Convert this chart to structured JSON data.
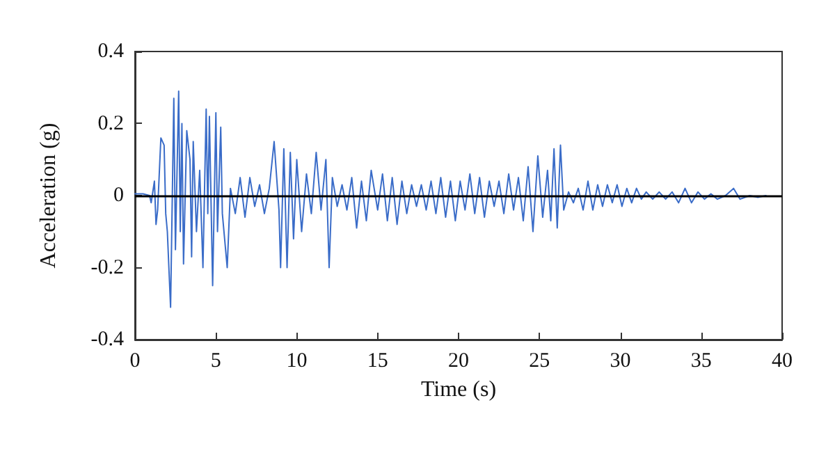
{
  "chart_data": {
    "type": "line",
    "xlabel": "Time (s)",
    "ylabel": "Acceleration (g)",
    "xlim": [
      0,
      40
    ],
    "xticks": [
      0,
      5,
      10,
      15,
      20,
      25,
      30,
      35,
      40
    ],
    "ylim": [
      -0.4,
      0.4
    ],
    "yticks": [
      -0.4,
      -0.2,
      0,
      0.2,
      0.4
    ],
    "grid": false,
    "marker": "none",
    "line_style": "solid",
    "ref_lines": [
      {
        "axis": "y",
        "value": 0,
        "color": "#000000"
      }
    ],
    "series": [
      {
        "color": "#3a6cc8",
        "x": [
          0,
          0.5,
          0.9,
          1.0,
          1.2,
          1.3,
          1.4,
          1.6,
          1.8,
          1.9,
          2.0,
          2.2,
          2.4,
          2.5,
          2.7,
          2.8,
          2.9,
          3.0,
          3.2,
          3.4,
          3.5,
          3.6,
          3.8,
          4.0,
          4.2,
          4.4,
          4.5,
          4.6,
          4.8,
          5.0,
          5.1,
          5.3,
          5.4,
          5.7,
          5.9,
          6.2,
          6.5,
          6.8,
          7.1,
          7.4,
          7.7,
          8.0,
          8.3,
          8.6,
          8.9,
          9.0,
          9.2,
          9.4,
          9.6,
          9.8,
          10.0,
          10.3,
          10.6,
          10.9,
          11.2,
          11.5,
          11.8,
          12.0,
          12.2,
          12.5,
          12.8,
          13.1,
          13.4,
          13.7,
          14.0,
          14.3,
          14.6,
          15.0,
          15.3,
          15.6,
          15.9,
          16.2,
          16.5,
          16.8,
          17.1,
          17.4,
          17.7,
          18.0,
          18.3,
          18.6,
          18.9,
          19.2,
          19.5,
          19.8,
          20.1,
          20.4,
          20.7,
          21.0,
          21.3,
          21.6,
          21.9,
          22.2,
          22.5,
          22.8,
          23.1,
          23.4,
          23.7,
          24.0,
          24.3,
          24.6,
          24.9,
          25.2,
          25.5,
          25.7,
          25.9,
          26.1,
          26.3,
          26.5,
          26.8,
          27.1,
          27.4,
          27.7,
          28.0,
          28.3,
          28.6,
          28.9,
          29.2,
          29.5,
          29.8,
          30.1,
          30.4,
          30.7,
          31.0,
          31.3,
          31.6,
          32.0,
          32.4,
          32.8,
          33.2,
          33.6,
          34.0,
          34.4,
          34.8,
          35.2,
          35.6,
          36.0,
          36.5,
          37.0,
          37.4,
          38.0,
          38.5,
          39.0
        ],
        "values": [
          0.005,
          0.005,
          0.0,
          -0.02,
          0.04,
          -0.08,
          -0.04,
          0.16,
          0.14,
          -0.05,
          -0.1,
          -0.31,
          0.27,
          -0.15,
          0.29,
          -0.1,
          0.2,
          -0.19,
          0.18,
          0.1,
          -0.17,
          0.15,
          -0.1,
          0.07,
          -0.2,
          0.24,
          -0.05,
          0.22,
          -0.25,
          0.23,
          -0.1,
          0.19,
          -0.05,
          -0.2,
          0.02,
          -0.05,
          0.05,
          -0.06,
          0.05,
          -0.03,
          0.03,
          -0.05,
          0.02,
          0.15,
          -0.04,
          -0.2,
          0.13,
          -0.2,
          0.12,
          -0.12,
          0.1,
          -0.1,
          0.06,
          -0.05,
          0.12,
          -0.04,
          0.1,
          -0.2,
          0.05,
          -0.03,
          0.03,
          -0.04,
          0.05,
          -0.09,
          0.04,
          -0.07,
          0.07,
          -0.04,
          0.06,
          -0.07,
          0.05,
          -0.08,
          0.04,
          -0.05,
          0.03,
          -0.03,
          0.03,
          -0.04,
          0.04,
          -0.05,
          0.05,
          -0.06,
          0.04,
          -0.07,
          0.04,
          -0.04,
          0.06,
          -0.05,
          0.05,
          -0.06,
          0.04,
          -0.03,
          0.04,
          -0.05,
          0.06,
          -0.04,
          0.05,
          -0.07,
          0.08,
          -0.1,
          0.11,
          -0.06,
          0.07,
          -0.07,
          0.13,
          -0.09,
          0.14,
          -0.04,
          0.01,
          -0.02,
          0.02,
          -0.04,
          0.04,
          -0.04,
          0.03,
          -0.03,
          0.03,
          -0.02,
          0.03,
          -0.03,
          0.02,
          -0.02,
          0.02,
          -0.01,
          0.01,
          -0.01,
          0.01,
          -0.01,
          0.01,
          -0.02,
          0.02,
          -0.02,
          0.01,
          -0.01,
          0.005,
          -0.01,
          0.0,
          0.02,
          -0.01,
          0.0,
          -0.005,
          0.0
        ]
      }
    ]
  }
}
